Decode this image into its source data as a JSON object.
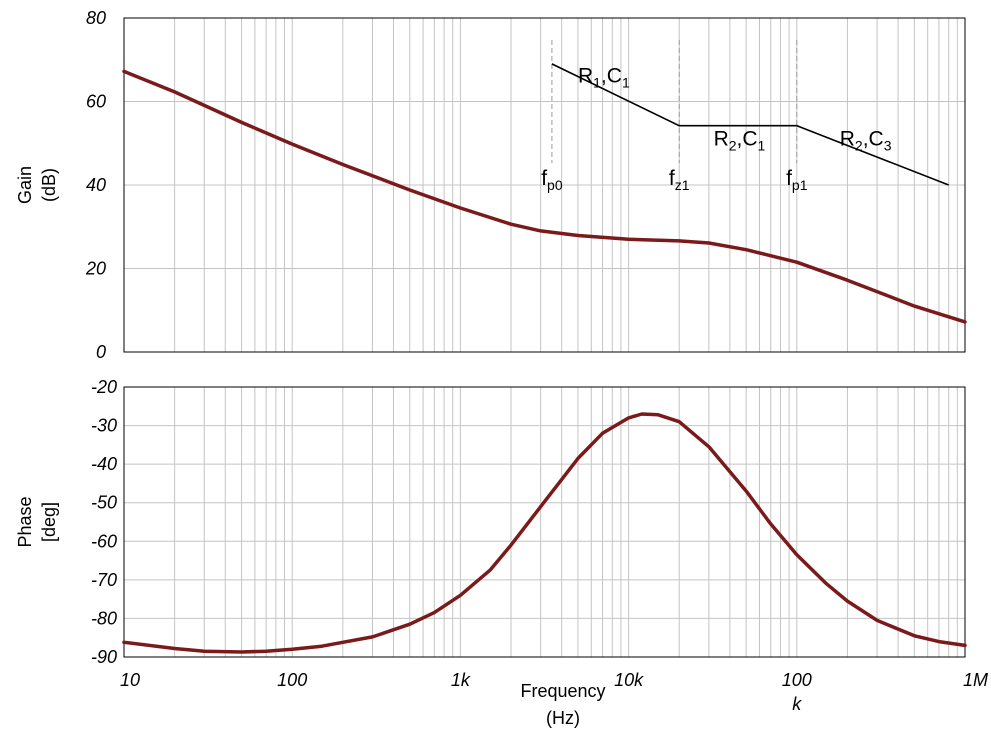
{
  "chart_data": [
    {
      "type": "line",
      "panel": "gain",
      "xscale": "log",
      "xlim": [
        10,
        1000000
      ],
      "ylim": [
        0,
        80
      ],
      "ylabel": [
        "Gain",
        "(dB)"
      ],
      "yticks": [
        "80",
        "60",
        "40",
        "20",
        "0"
      ],
      "series": [
        {
          "color": "#7a1a1a",
          "x": [
            10,
            20,
            50,
            100,
            200,
            500,
            1000,
            2000,
            3000,
            5000,
            10000,
            20000,
            30000,
            50000,
            100000,
            200000,
            500000,
            1000000
          ],
          "y": [
            67.2,
            62.3,
            55.0,
            49.8,
            44.9,
            38.8,
            34.5,
            30.6,
            29.0,
            27.9,
            27.0,
            26.6,
            26.1,
            24.5,
            21.5,
            17.2,
            11.0,
            7.2
          ]
        }
      ],
      "asymptote": {
        "color": "#000000",
        "x": [
          3500,
          20000,
          100000,
          800000
        ],
        "y": [
          69,
          54.2,
          54.2,
          40
        ]
      },
      "markers": [
        {
          "x": 3500,
          "label_main": "f",
          "label_sub": "p0"
        },
        {
          "x": 20000,
          "label_main": "f",
          "label_sub": "z1"
        },
        {
          "x": 100000,
          "label_main": "f",
          "label_sub": "p1"
        }
      ],
      "segment_labels": [
        {
          "a": "R",
          "a_sub": "1",
          "sep": ",",
          "b": "C",
          "b_sub": "1",
          "x": 5000,
          "y": 64.5
        },
        {
          "a": "R",
          "a_sub": "2",
          "sep": ",",
          "b": "C",
          "b_sub": "1",
          "x": 32000,
          "y": 49.5
        },
        {
          "a": "R",
          "a_sub": "2",
          "sep": ",",
          "b": "C",
          "b_sub": "3",
          "x": 180000,
          "y": 49.5
        }
      ]
    },
    {
      "type": "line",
      "panel": "phase",
      "xscale": "log",
      "xlim": [
        10,
        1000000
      ],
      "ylim": [
        -90,
        -20
      ],
      "ylabel": [
        "Phase",
        "[deg]"
      ],
      "yticks": [
        "-20",
        "-30",
        "-40",
        "-50",
        "-60",
        "-70",
        "-80",
        "-90"
      ],
      "xlabel": [
        "Frequency",
        "(Hz)"
      ],
      "xticks": [
        {
          "value": 10,
          "lines": [
            "10"
          ]
        },
        {
          "value": 100,
          "lines": [
            "100"
          ]
        },
        {
          "value": 1000,
          "lines": [
            "1k"
          ]
        },
        {
          "value": 10000,
          "lines": [
            "10k"
          ]
        },
        {
          "value": 100000,
          "lines": [
            "100",
            "k"
          ]
        },
        {
          "value": 1000000,
          "lines": [
            "1M"
          ]
        }
      ],
      "series": [
        {
          "color": "#7a1a1a",
          "x": [
            10,
            20,
            30,
            50,
            70,
            100,
            150,
            200,
            300,
            500,
            700,
            1000,
            1500,
            2000,
            3000,
            5000,
            7000,
            10000,
            12000,
            15000,
            20000,
            30000,
            50000,
            70000,
            100000,
            150000,
            200000,
            300000,
            500000,
            700000,
            1000000
          ],
          "y": [
            -86.2,
            -87.8,
            -88.5,
            -88.7,
            -88.5,
            -88.0,
            -87.2,
            -86.2,
            -84.8,
            -81.5,
            -78.5,
            -74.0,
            -67.5,
            -61.0,
            -51.0,
            -38.5,
            -32.0,
            -28.0,
            -27.0,
            -27.2,
            -29.0,
            -35.5,
            -47.0,
            -55.5,
            -63.5,
            -71.0,
            -75.5,
            -80.5,
            -84.5,
            -86.0,
            -87.0
          ]
        }
      ]
    }
  ]
}
